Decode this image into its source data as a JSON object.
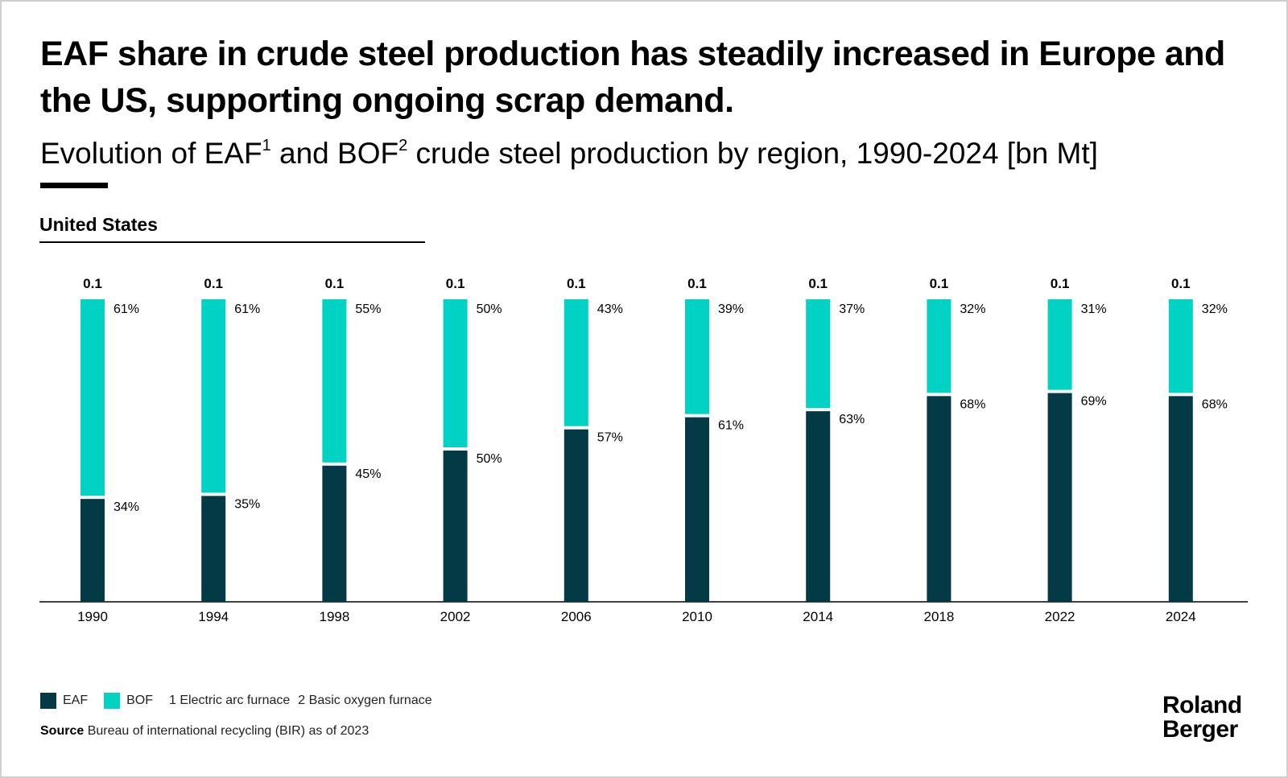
{
  "title": "EAF share in crude steel production has steadily increased in Europe and the US, supporting ongoing scrap demand.",
  "subtitle": {
    "part1": "Evolution of EAF",
    "sup1": "1",
    "part2": " and BOF",
    "sup2": "2",
    "part3": " crude steel production by region, 1990-2024 [bn Mt]"
  },
  "region": "United States",
  "colors": {
    "eaf": "#033a45",
    "bof": "#00d2c4",
    "axis": "#000000"
  },
  "chart_data": {
    "type": "bar",
    "stacked": true,
    "normalized": true,
    "categories": [
      "1990",
      "1994",
      "1998",
      "2002",
      "2006",
      "2010",
      "2014",
      "2018",
      "2022",
      "2024"
    ],
    "totals": [
      "0.1",
      "0.1",
      "0.1",
      "0.1",
      "0.1",
      "0.1",
      "0.1",
      "0.1",
      "0.1",
      "0.1"
    ],
    "series": [
      {
        "name": "EAF",
        "values": [
          34,
          35,
          45,
          50,
          57,
          61,
          63,
          68,
          69,
          68
        ],
        "labels": [
          "34%",
          "35%",
          "45%",
          "50%",
          "57%",
          "61%",
          "63%",
          "68%",
          "69%",
          "68%"
        ]
      },
      {
        "name": "BOF",
        "values": [
          61,
          61,
          55,
          50,
          43,
          39,
          37,
          32,
          31,
          32
        ],
        "labels": [
          "61%",
          "61%",
          "55%",
          "50%",
          "43%",
          "39%",
          "37%",
          "32%",
          "31%",
          "32%"
        ]
      }
    ],
    "ylim": [
      0,
      100
    ],
    "unit": "bn Mt"
  },
  "legend": {
    "eaf_label": "EAF",
    "bof_label": "BOF",
    "footnote1": "1 Electric arc furnace",
    "footnote2": "2 Basic oxygen furnace"
  },
  "source": {
    "label": "Source",
    "text": "Bureau of international recycling (BIR) as of 2023"
  },
  "logo": {
    "line1": "Roland",
    "line2": "Berger"
  }
}
